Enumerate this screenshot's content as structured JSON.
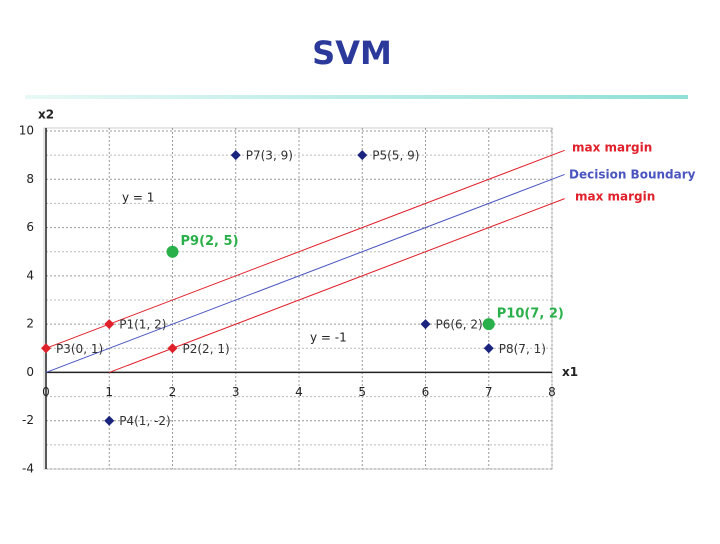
{
  "chart_data": {
    "type": "scatter",
    "title": "SVM",
    "x_label": "x1",
    "y_label": "x2",
    "xlim": [
      0,
      8
    ],
    "ylim": [
      -4,
      10
    ],
    "xticks": [
      0,
      1,
      2,
      3,
      4,
      5,
      6,
      7,
      8
    ],
    "yticks": [
      -4,
      -2,
      0,
      2,
      4,
      6,
      8,
      10
    ],
    "y_minor_ticks": [
      -3,
      -1,
      1,
      3,
      5,
      7,
      9
    ],
    "grid": true,
    "series": [
      {
        "marker": "diamond",
        "color": "#e0202a",
        "x": [
          1,
          2,
          0
        ],
        "values": [
          2,
          1,
          1
        ],
        "labels": [
          "P1(1, 2)",
          "P2(2, 1)",
          "P3(0, 1)"
        ]
      },
      {
        "marker": "diamond",
        "color": "#1a237e",
        "x": [
          1,
          5,
          6,
          3,
          7
        ],
        "values": [
          -2,
          9,
          2,
          9,
          1
        ],
        "labels": [
          "P4(1, -2)",
          "P5(5, 9)",
          "P6(6, 2)",
          "P7(3, 9)",
          "P8(7, 1)"
        ]
      },
      {
        "marker": "circle",
        "color": "#2ab04a",
        "x": [
          2,
          7
        ],
        "values": [
          5,
          2
        ],
        "labels": [
          "P9(2, 5)",
          "P10(7, 2)"
        ]
      }
    ],
    "lines": [
      {
        "label": "max margin",
        "color": "#e0202a",
        "x": [
          0,
          8.2
        ],
        "values": [
          1,
          9.2
        ]
      },
      {
        "label": "Decision Boundary",
        "color": "#4a55c0",
        "x": [
          0,
          8.2
        ],
        "values": [
          0,
          8.2
        ]
      },
      {
        "label": "max margin",
        "color": "#e0202a",
        "x": [
          1,
          8.2
        ],
        "values": [
          0,
          7.2
        ]
      }
    ],
    "annotations": [
      "y = 1",
      "y = -1"
    ]
  }
}
